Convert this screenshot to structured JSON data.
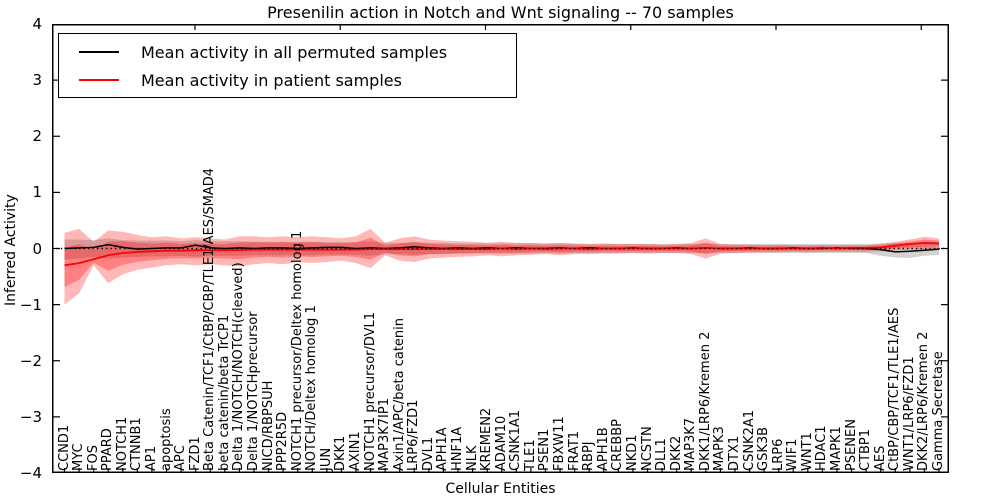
{
  "title": "Presenilin action in Notch and Wnt signaling -- 70 samples",
  "legend": {
    "entries": [
      {
        "label": "Mean activity in all permuted samples",
        "color": "#000000"
      },
      {
        "label": "Mean activity in patient samples",
        "color": "#ff0000"
      }
    ]
  },
  "axes": {
    "ylabel": "Inferred Activity",
    "xlabel": "Cellular Entities",
    "yticks": [
      "4",
      "3",
      "2",
      "1",
      "0",
      "−1",
      "−2",
      "−3",
      "−4"
    ]
  },
  "chart_data": {
    "type": "line",
    "title": "Presenilin action in Notch and Wnt signaling -- 70 samples",
    "xlabel": "Cellular Entities",
    "ylabel": "Inferred Activity",
    "ylim": [
      -4,
      4
    ],
    "grid": false,
    "legend_position": "upper left",
    "zero_line": {
      "style": "dotted",
      "color": "#000000",
      "y": 0
    },
    "categories": [
      "CCND1",
      "MYC",
      "FOS",
      "PPARD",
      "NOTCH1",
      "CTNNB1",
      "AP1",
      "apoptosis",
      "APC",
      "FZD1",
      "Beta Catenin/TCF1/CtBP/CBP/TLE1/AES/SMAD4",
      "beta catenin/beta TrCP1",
      "Delta 1/NOTCH/NOTCH(cleaved)",
      "Delta 1/NOTCHprecursor",
      "NICD/RBPSUH",
      "PPP2R5D",
      "NOTCH1 precursor/Deltex homolog 1",
      "NOTCH/Deltex homolog 1",
      "JUN",
      "DKK1",
      "AXIN1",
      "NOTCH1 precursor/DVL1",
      "MAP3K7IP1",
      "Axin1/APC/beta catenin",
      "LRP6/FZD1",
      "DVL1",
      "APH1A",
      "HNF1A",
      "NLK",
      "KREMEN2",
      "ADAM10",
      "CSNK1A1",
      "TLE1",
      "PSEN1",
      "FBXW11",
      "FRAT1",
      "RBPJ",
      "APH1B",
      "CREBBP",
      "NKD1",
      "NCSTN",
      "DLL1",
      "DKK2",
      "MAP3K7",
      "DKK1/LRP6/Kremen 2",
      "MAPK3",
      "DTX1",
      "CSNK2A1",
      "GSK3B",
      "LRP6",
      "WIF1",
      "WNT1",
      "HDAC1",
      "MAPK1",
      "PSENEN",
      "CTBP1",
      "AES",
      "CtBP/CBP/TCF1/TLE1/AES",
      "WNT1/LRP6/FZD1",
      "DKK2/LRP6/Kremen 2",
      "Gamma Secretase"
    ],
    "series": [
      {
        "name": "Mean activity in all permuted samples",
        "color": "#000000",
        "values": [
          0.0,
          0.01,
          0.02,
          0.07,
          0.02,
          -0.01,
          0.0,
          0.01,
          0.01,
          0.06,
          0.01,
          0.0,
          0.01,
          0.0,
          0.01,
          0.01,
          0.0,
          0.01,
          0.02,
          0.02,
          0.0,
          0.01,
          0.0,
          0.01,
          0.03,
          0.01,
          0.0,
          0.01,
          0.0,
          0.01,
          0.0,
          0.01,
          0.0,
          0.0,
          0.01,
          0.0,
          0.01,
          0.0,
          0.0,
          0.01,
          0.0,
          0.0,
          0.01,
          0.0,
          0.01,
          0.0,
          0.0,
          0.01,
          0.0,
          0.0,
          0.01,
          0.0,
          0.0,
          0.01,
          0.0,
          0.0,
          -0.02,
          -0.06,
          -0.05,
          -0.03,
          -0.01
        ],
        "band_upper": [
          0.16,
          0.16,
          0.15,
          0.18,
          0.15,
          0.14,
          0.14,
          0.14,
          0.13,
          0.15,
          0.13,
          0.13,
          0.13,
          0.12,
          0.12,
          0.12,
          0.12,
          0.12,
          0.11,
          0.11,
          0.11,
          0.13,
          0.1,
          0.1,
          0.11,
          0.1,
          0.1,
          0.09,
          0.09,
          0.09,
          0.09,
          0.09,
          0.09,
          0.08,
          0.09,
          0.08,
          0.08,
          0.08,
          0.08,
          0.08,
          0.08,
          0.08,
          0.08,
          0.08,
          0.09,
          0.08,
          0.08,
          0.08,
          0.08,
          0.08,
          0.08,
          0.08,
          0.08,
          0.08,
          0.08,
          0.08,
          0.09,
          0.1,
          0.1,
          0.09,
          0.1
        ],
        "band_lower": [
          -0.2,
          -0.18,
          -0.15,
          -0.18,
          -0.16,
          -0.15,
          -0.14,
          -0.14,
          -0.13,
          -0.15,
          -0.13,
          -0.13,
          -0.13,
          -0.12,
          -0.12,
          -0.12,
          -0.12,
          -0.12,
          -0.11,
          -0.11,
          -0.11,
          -0.13,
          -0.1,
          -0.1,
          -0.11,
          -0.1,
          -0.1,
          -0.09,
          -0.09,
          -0.09,
          -0.09,
          -0.09,
          -0.09,
          -0.08,
          -0.09,
          -0.08,
          -0.08,
          -0.08,
          -0.08,
          -0.08,
          -0.08,
          -0.08,
          -0.08,
          -0.08,
          -0.09,
          -0.08,
          -0.08,
          -0.08,
          -0.08,
          -0.08,
          -0.08,
          -0.08,
          -0.08,
          -0.08,
          -0.08,
          -0.08,
          -0.13,
          -0.16,
          -0.17,
          -0.13,
          -0.11
        ]
      },
      {
        "name": "Mean activity in patient samples",
        "color": "#ff0000",
        "values": [
          -0.3,
          -0.26,
          -0.19,
          -0.12,
          -0.08,
          -0.06,
          -0.05,
          -0.04,
          -0.04,
          -0.03,
          -0.03,
          -0.03,
          -0.03,
          -0.02,
          -0.02,
          -0.02,
          -0.02,
          -0.02,
          -0.02,
          -0.02,
          -0.02,
          -0.01,
          -0.01,
          -0.01,
          -0.01,
          -0.01,
          -0.01,
          -0.01,
          -0.01,
          -0.01,
          0.0,
          -0.01,
          0.0,
          -0.01,
          0.0,
          0.0,
          -0.01,
          0.0,
          0.0,
          0.0,
          0.0,
          0.0,
          0.0,
          0.0,
          0.01,
          0.0,
          0.0,
          0.0,
          0.0,
          0.0,
          0.0,
          0.0,
          0.01,
          0.0,
          0.01,
          0.01,
          0.02,
          0.05,
          0.08,
          0.1,
          0.09
        ],
        "band_upper": [
          0.28,
          0.35,
          0.12,
          0.32,
          0.3,
          0.24,
          0.2,
          0.22,
          0.18,
          0.2,
          0.18,
          0.16,
          0.22,
          0.22,
          0.2,
          0.22,
          0.2,
          0.22,
          0.2,
          0.18,
          0.22,
          0.35,
          0.1,
          0.18,
          0.22,
          0.16,
          0.14,
          0.13,
          0.12,
          0.1,
          0.12,
          0.1,
          0.1,
          0.09,
          0.1,
          0.09,
          0.08,
          0.09,
          0.08,
          0.08,
          0.08,
          0.07,
          0.08,
          0.1,
          0.18,
          0.08,
          0.07,
          0.07,
          0.06,
          0.07,
          0.06,
          0.06,
          0.06,
          0.06,
          0.06,
          0.06,
          0.08,
          0.12,
          0.16,
          0.21,
          0.18
        ],
        "band_lower": [
          -1.0,
          -0.8,
          -0.3,
          -0.62,
          -0.46,
          -0.38,
          -0.34,
          -0.3,
          -0.28,
          -0.3,
          -0.28,
          -0.3,
          -0.32,
          -0.28,
          -0.26,
          -0.28,
          -0.24,
          -0.26,
          -0.24,
          -0.22,
          -0.26,
          -0.35,
          -0.12,
          -0.22,
          -0.24,
          -0.18,
          -0.16,
          -0.15,
          -0.14,
          -0.12,
          -0.14,
          -0.12,
          -0.11,
          -0.1,
          -0.12,
          -0.1,
          -0.1,
          -0.09,
          -0.09,
          -0.08,
          -0.09,
          -0.08,
          -0.08,
          -0.1,
          -0.18,
          -0.09,
          -0.08,
          -0.07,
          -0.07,
          -0.07,
          -0.06,
          -0.07,
          -0.06,
          -0.06,
          -0.06,
          -0.06,
          -0.05,
          -0.03,
          -0.02,
          -0.02,
          0.0
        ]
      }
    ]
  }
}
